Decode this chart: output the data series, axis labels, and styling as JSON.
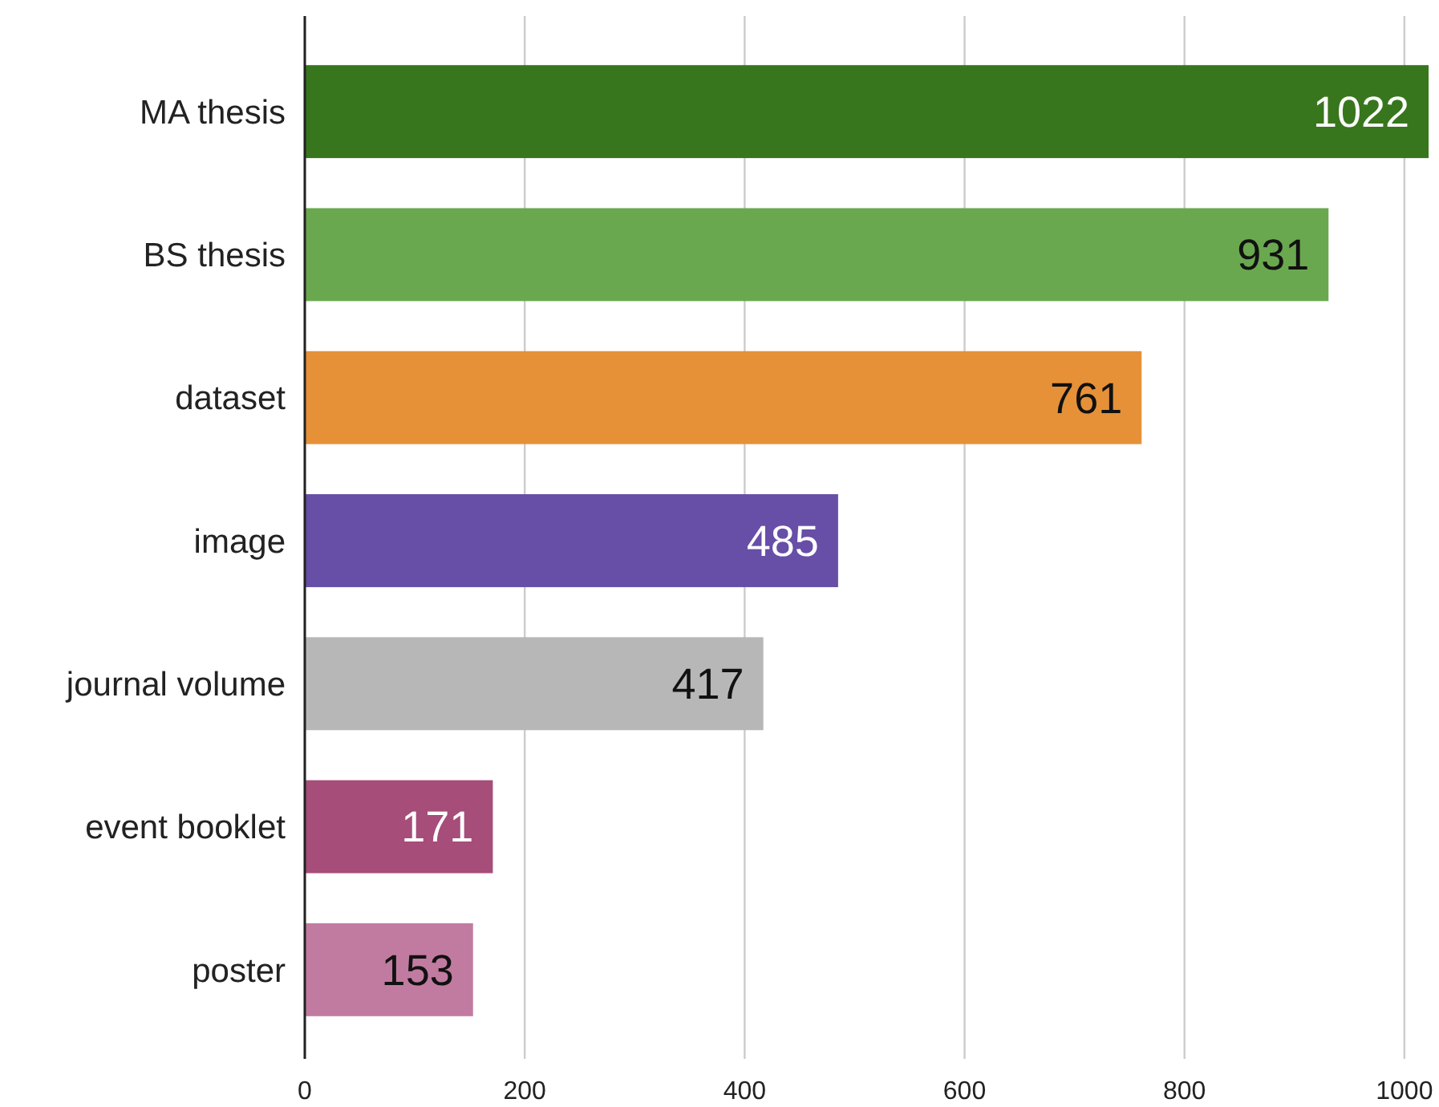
{
  "chart_data": {
    "type": "bar",
    "orientation": "horizontal",
    "categories": [
      "MA thesis",
      "BS thesis",
      "dataset",
      "image",
      "journal volume",
      "event booklet",
      "poster"
    ],
    "values": [
      1022,
      931,
      761,
      485,
      417,
      171,
      153
    ],
    "colors": [
      "#38761d",
      "#6aa84f",
      "#e69138",
      "#674ea7",
      "#b7b7b7",
      "#a64d79",
      "#c27ba0"
    ],
    "xlim": [
      0,
      1030
    ],
    "xticks": [
      0,
      200,
      400,
      600,
      800,
      1000
    ],
    "grid": "x",
    "data_labels": true
  }
}
